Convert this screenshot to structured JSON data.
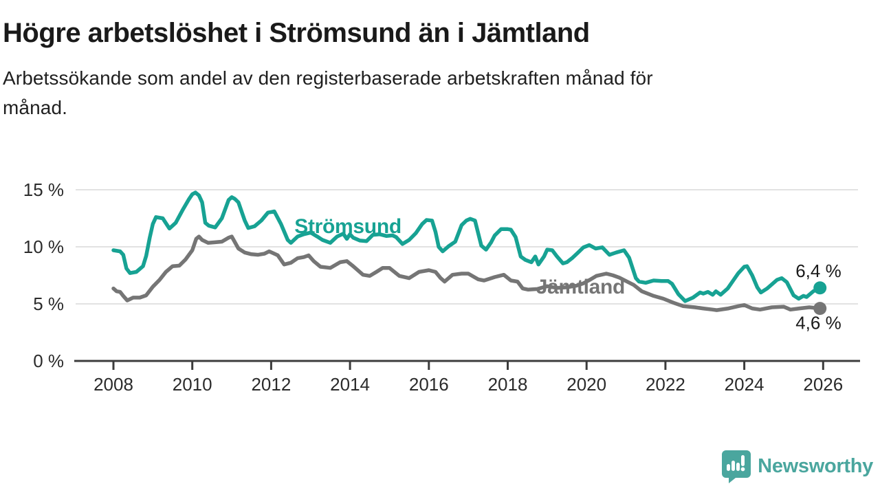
{
  "header": {
    "title": "Högre arbetslöshet i Strömsund än i Jämtland",
    "subtitle": "Arbetssökande som andel av den registerbaserade arbetskraften månad för månad."
  },
  "footer": {
    "brand": "Newsworthy",
    "brand_color": "#4aa69e"
  },
  "colors": {
    "grid": "#d8d8d8",
    "axis": "#3c3c3c",
    "tick_label": "#2b2b2b",
    "value_label": "#1a1a1a"
  },
  "chart_data": {
    "type": "line",
    "title": "Högre arbetslöshet i Strömsund än i Jämtland",
    "xlabel": "",
    "ylabel": "Arbetssökande som andel av den registerbaserade arbetskraften",
    "x_axis": {
      "range": [
        2007.0,
        2026.95
      ],
      "ticks": [
        2008,
        2010,
        2012,
        2014,
        2016,
        2018,
        2020,
        2022,
        2024,
        2026
      ],
      "tick_labels": [
        "2008",
        "2010",
        "2012",
        "2014",
        "2016",
        "2018",
        "2020",
        "2022",
        "2024",
        "2026"
      ]
    },
    "y_axis": {
      "range": [
        0,
        16
      ],
      "ticks": [
        0,
        5,
        10,
        15
      ],
      "tick_labels": [
        "0 %",
        "5 %",
        "10 %",
        "15 %"
      ]
    },
    "grid": true,
    "legend_position": "inline-labels",
    "series": [
      {
        "name": "Jämtland",
        "color": "#757575",
        "end_value_label": "4,6 %",
        "end_value": 4.6,
        "value_label_side": "below",
        "name_label": {
          "t": 2018.72,
          "v": 5.9
        },
        "points": [
          [
            2008.0,
            6.35
          ],
          [
            2008.08,
            6.1
          ],
          [
            2008.17,
            6.05
          ],
          [
            2008.25,
            5.7
          ],
          [
            2008.35,
            5.3
          ],
          [
            2008.5,
            5.55
          ],
          [
            2008.67,
            5.55
          ],
          [
            2008.83,
            5.75
          ],
          [
            2009.0,
            6.5
          ],
          [
            2009.17,
            7.1
          ],
          [
            2009.33,
            7.8
          ],
          [
            2009.5,
            8.3
          ],
          [
            2009.67,
            8.35
          ],
          [
            2009.83,
            8.9
          ],
          [
            2010.0,
            9.7
          ],
          [
            2010.1,
            10.7
          ],
          [
            2010.17,
            10.9
          ],
          [
            2010.25,
            10.6
          ],
          [
            2010.4,
            10.35
          ],
          [
            2010.58,
            10.4
          ],
          [
            2010.75,
            10.45
          ],
          [
            2010.92,
            10.8
          ],
          [
            2011.0,
            10.9
          ],
          [
            2011.17,
            9.85
          ],
          [
            2011.33,
            9.5
          ],
          [
            2011.5,
            9.35
          ],
          [
            2011.67,
            9.3
          ],
          [
            2011.83,
            9.4
          ],
          [
            2011.95,
            9.6
          ],
          [
            2012.08,
            9.4
          ],
          [
            2012.17,
            9.25
          ],
          [
            2012.33,
            8.45
          ],
          [
            2012.5,
            8.6
          ],
          [
            2012.67,
            9.0
          ],
          [
            2012.83,
            9.1
          ],
          [
            2012.95,
            9.25
          ],
          [
            2013.08,
            8.75
          ],
          [
            2013.25,
            8.25
          ],
          [
            2013.5,
            8.15
          ],
          [
            2013.75,
            8.65
          ],
          [
            2013.92,
            8.75
          ],
          [
            2014.08,
            8.3
          ],
          [
            2014.33,
            7.55
          ],
          [
            2014.5,
            7.45
          ],
          [
            2014.67,
            7.8
          ],
          [
            2014.83,
            8.15
          ],
          [
            2015.0,
            8.15
          ],
          [
            2015.25,
            7.45
          ],
          [
            2015.5,
            7.25
          ],
          [
            2015.75,
            7.8
          ],
          [
            2016.0,
            7.95
          ],
          [
            2016.17,
            7.8
          ],
          [
            2016.3,
            7.25
          ],
          [
            2016.4,
            6.95
          ],
          [
            2016.6,
            7.55
          ],
          [
            2016.83,
            7.65
          ],
          [
            2017.0,
            7.65
          ],
          [
            2017.25,
            7.15
          ],
          [
            2017.4,
            7.05
          ],
          [
            2017.67,
            7.35
          ],
          [
            2017.9,
            7.55
          ],
          [
            2018.08,
            7.05
          ],
          [
            2018.25,
            6.95
          ],
          [
            2018.38,
            6.35
          ],
          [
            2018.52,
            6.25
          ],
          [
            2018.75,
            6.3
          ],
          [
            2019.0,
            6.55
          ],
          [
            2019.25,
            6.4
          ],
          [
            2019.5,
            6.45
          ],
          [
            2019.75,
            6.6
          ],
          [
            2019.92,
            6.8
          ],
          [
            2020.08,
            7.1
          ],
          [
            2020.25,
            7.45
          ],
          [
            2020.5,
            7.65
          ],
          [
            2020.67,
            7.5
          ],
          [
            2020.83,
            7.3
          ],
          [
            2021.0,
            7.0
          ],
          [
            2021.2,
            6.65
          ],
          [
            2021.4,
            6.1
          ],
          [
            2021.7,
            5.7
          ],
          [
            2021.95,
            5.45
          ],
          [
            2022.2,
            5.1
          ],
          [
            2022.45,
            4.8
          ],
          [
            2022.75,
            4.7
          ],
          [
            2022.95,
            4.6
          ],
          [
            2023.2,
            4.5
          ],
          [
            2023.3,
            4.45
          ],
          [
            2023.6,
            4.6
          ],
          [
            2023.85,
            4.8
          ],
          [
            2024.0,
            4.9
          ],
          [
            2024.2,
            4.6
          ],
          [
            2024.4,
            4.5
          ],
          [
            2024.7,
            4.7
          ],
          [
            2025.0,
            4.75
          ],
          [
            2025.17,
            4.5
          ],
          [
            2025.4,
            4.6
          ],
          [
            2025.65,
            4.7
          ],
          [
            2025.92,
            4.6
          ]
        ]
      },
      {
        "name": "Strömsund",
        "color": "#17a293",
        "end_value_label": "6,4 %",
        "end_value": 6.4,
        "value_label_side": "above",
        "name_label": {
          "t": 2012.59,
          "v": 11.2
        },
        "points": [
          [
            2008.0,
            9.7
          ],
          [
            2008.17,
            9.6
          ],
          [
            2008.25,
            9.3
          ],
          [
            2008.33,
            8.1
          ],
          [
            2008.42,
            7.7
          ],
          [
            2008.58,
            7.8
          ],
          [
            2008.75,
            8.3
          ],
          [
            2008.83,
            9.2
          ],
          [
            2008.92,
            10.8
          ],
          [
            2009.0,
            12.0
          ],
          [
            2009.08,
            12.6
          ],
          [
            2009.25,
            12.5
          ],
          [
            2009.42,
            11.6
          ],
          [
            2009.58,
            12.1
          ],
          [
            2009.75,
            13.2
          ],
          [
            2009.92,
            14.2
          ],
          [
            2010.0,
            14.6
          ],
          [
            2010.08,
            14.75
          ],
          [
            2010.17,
            14.5
          ],
          [
            2010.25,
            13.9
          ],
          [
            2010.33,
            12.1
          ],
          [
            2010.42,
            11.85
          ],
          [
            2010.58,
            11.7
          ],
          [
            2010.75,
            12.5
          ],
          [
            2010.92,
            14.1
          ],
          [
            2011.0,
            14.35
          ],
          [
            2011.08,
            14.2
          ],
          [
            2011.17,
            13.9
          ],
          [
            2011.33,
            12.3
          ],
          [
            2011.42,
            11.65
          ],
          [
            2011.58,
            11.8
          ],
          [
            2011.75,
            12.3
          ],
          [
            2011.92,
            13.0
          ],
          [
            2012.0,
            13.05
          ],
          [
            2012.08,
            13.1
          ],
          [
            2012.25,
            12.0
          ],
          [
            2012.42,
            10.6
          ],
          [
            2012.5,
            10.35
          ],
          [
            2012.67,
            10.9
          ],
          [
            2012.83,
            11.1
          ],
          [
            2013.0,
            11.25
          ],
          [
            2013.17,
            10.9
          ],
          [
            2013.3,
            10.6
          ],
          [
            2013.5,
            10.35
          ],
          [
            2013.67,
            10.9
          ],
          [
            2013.83,
            11.15
          ],
          [
            2013.92,
            10.7
          ],
          [
            2014.0,
            11.1
          ],
          [
            2014.08,
            10.8
          ],
          [
            2014.25,
            10.55
          ],
          [
            2014.42,
            10.5
          ],
          [
            2014.58,
            11.05
          ],
          [
            2014.75,
            11.1
          ],
          [
            2014.92,
            10.95
          ],
          [
            2015.08,
            11.0
          ],
          [
            2015.17,
            10.85
          ],
          [
            2015.33,
            10.25
          ],
          [
            2015.5,
            10.6
          ],
          [
            2015.67,
            11.2
          ],
          [
            2015.83,
            12.0
          ],
          [
            2015.94,
            12.35
          ],
          [
            2016.08,
            12.3
          ],
          [
            2016.17,
            11.3
          ],
          [
            2016.25,
            10.0
          ],
          [
            2016.35,
            9.6
          ],
          [
            2016.5,
            10.05
          ],
          [
            2016.67,
            10.45
          ],
          [
            2016.83,
            11.9
          ],
          [
            2016.95,
            12.3
          ],
          [
            2017.05,
            12.45
          ],
          [
            2017.17,
            12.3
          ],
          [
            2017.33,
            10.1
          ],
          [
            2017.45,
            9.75
          ],
          [
            2017.58,
            10.4
          ],
          [
            2017.67,
            11.0
          ],
          [
            2017.83,
            11.55
          ],
          [
            2018.0,
            11.55
          ],
          [
            2018.08,
            11.5
          ],
          [
            2018.2,
            10.85
          ],
          [
            2018.33,
            9.15
          ],
          [
            2018.45,
            8.85
          ],
          [
            2018.6,
            8.65
          ],
          [
            2018.7,
            9.15
          ],
          [
            2018.78,
            8.45
          ],
          [
            2018.92,
            9.15
          ],
          [
            2019.0,
            9.75
          ],
          [
            2019.13,
            9.7
          ],
          [
            2019.25,
            9.15
          ],
          [
            2019.4,
            8.55
          ],
          [
            2019.5,
            8.65
          ],
          [
            2019.63,
            9.0
          ],
          [
            2019.77,
            9.45
          ],
          [
            2019.92,
            9.95
          ],
          [
            2020.07,
            10.15
          ],
          [
            2020.23,
            9.85
          ],
          [
            2020.4,
            9.95
          ],
          [
            2020.58,
            9.3
          ],
          [
            2020.75,
            9.5
          ],
          [
            2020.95,
            9.7
          ],
          [
            2021.08,
            9.05
          ],
          [
            2021.25,
            7.25
          ],
          [
            2021.33,
            6.95
          ],
          [
            2021.5,
            6.85
          ],
          [
            2021.7,
            7.05
          ],
          [
            2021.9,
            7.0
          ],
          [
            2022.07,
            7.0
          ],
          [
            2022.17,
            6.75
          ],
          [
            2022.33,
            5.85
          ],
          [
            2022.5,
            5.25
          ],
          [
            2022.7,
            5.55
          ],
          [
            2022.88,
            6.0
          ],
          [
            2022.96,
            5.9
          ],
          [
            2023.08,
            6.05
          ],
          [
            2023.2,
            5.8
          ],
          [
            2023.28,
            6.1
          ],
          [
            2023.4,
            5.8
          ],
          [
            2023.58,
            6.35
          ],
          [
            2023.72,
            7.05
          ],
          [
            2023.85,
            7.7
          ],
          [
            2024.0,
            8.25
          ],
          [
            2024.07,
            8.3
          ],
          [
            2024.2,
            7.5
          ],
          [
            2024.33,
            6.45
          ],
          [
            2024.42,
            6.0
          ],
          [
            2024.58,
            6.35
          ],
          [
            2024.83,
            7.1
          ],
          [
            2024.95,
            7.25
          ],
          [
            2025.08,
            6.9
          ],
          [
            2025.25,
            5.75
          ],
          [
            2025.38,
            5.45
          ],
          [
            2025.5,
            5.7
          ],
          [
            2025.58,
            5.6
          ],
          [
            2025.75,
            6.1
          ],
          [
            2025.92,
            6.4
          ]
        ]
      }
    ]
  }
}
